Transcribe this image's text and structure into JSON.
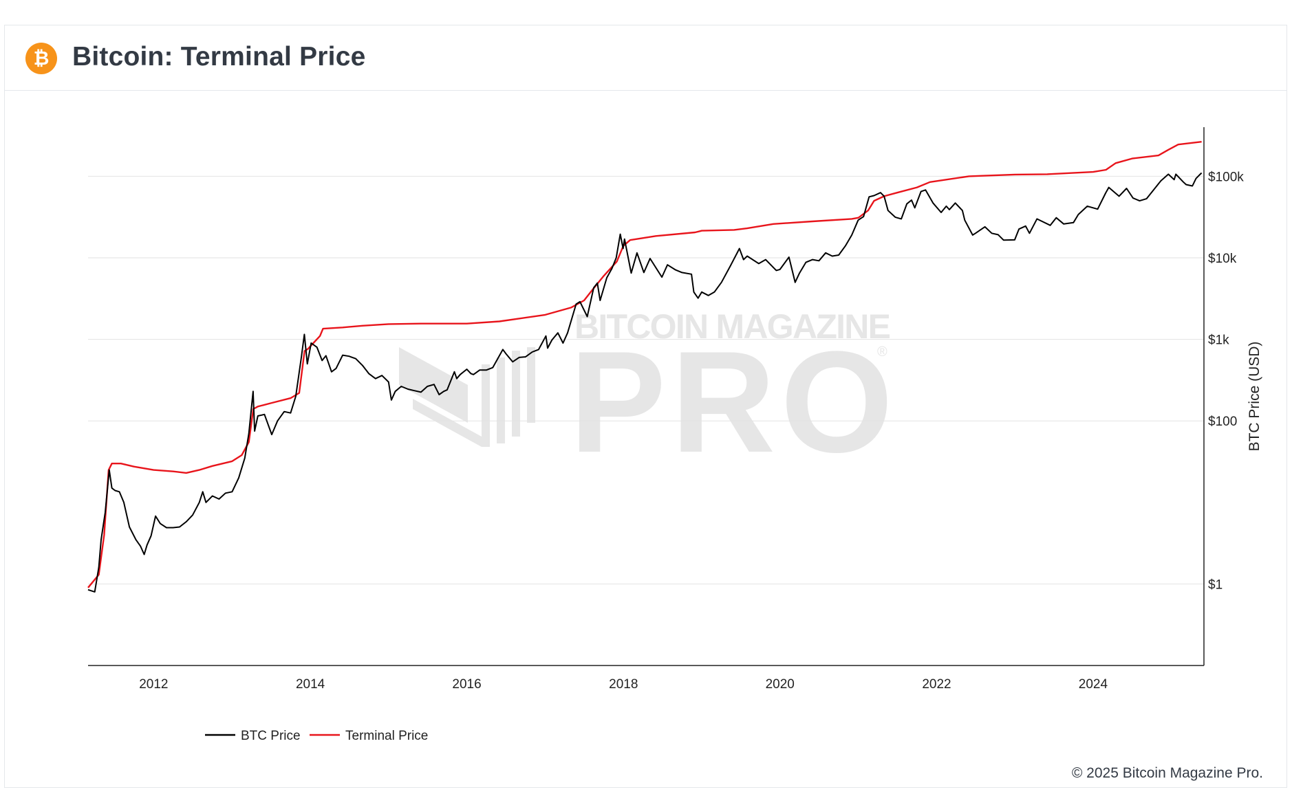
{
  "header": {
    "title": "Bitcoin: Terminal Price",
    "logo_icon": "bitcoin-logo-icon",
    "logo_glyph": "₿"
  },
  "watermark": {
    "line1": "BITCOIN MAGAZINE",
    "line2": "PRO",
    "mark": "®"
  },
  "footer": {
    "copyright": "© 2025 Bitcoin Magazine Pro."
  },
  "colors": {
    "btc": "#000000",
    "terminal": "#e8141b",
    "brand": "#f7931a",
    "grid": "#e2e2e2"
  },
  "chart_data": {
    "type": "line",
    "title": "Bitcoin: Terminal Price",
    "xlabel": "",
    "ylabel": "BTC Price (USD)",
    "y_scale": "log",
    "ylim": [
      0.1,
      400000
    ],
    "xlim": [
      "2011-03-01",
      "2025-06-01"
    ],
    "grid": true,
    "legend_position": "bottom-left",
    "x_ticks": [
      "2012",
      "2014",
      "2016",
      "2018",
      "2020",
      "2022",
      "2024"
    ],
    "y_ticks": [
      {
        "value": 1,
        "label": "$1"
      },
      {
        "value": 100,
        "label": "$100"
      },
      {
        "value": 1000,
        "label": "$1k"
      },
      {
        "value": 10000,
        "label": "$10k"
      },
      {
        "value": 100000,
        "label": "$100k"
      }
    ],
    "series": [
      {
        "name": "BTC Price",
        "color": "#000000",
        "points": [
          [
            "2011-03-01",
            0.85
          ],
          [
            "2011-04-01",
            0.8
          ],
          [
            "2011-04-20",
            1.6
          ],
          [
            "2011-05-01",
            3.5
          ],
          [
            "2011-05-20",
            7.5
          ],
          [
            "2011-06-08",
            25
          ],
          [
            "2011-06-20",
            15
          ],
          [
            "2011-07-05",
            14
          ],
          [
            "2011-07-25",
            13.5
          ],
          [
            "2011-08-15",
            10
          ],
          [
            "2011-09-10",
            5
          ],
          [
            "2011-10-10",
            3.5
          ],
          [
            "2011-11-01",
            2.9
          ],
          [
            "2011-11-18",
            2.3
          ],
          [
            "2011-12-01",
            3
          ],
          [
            "2011-12-20",
            3.9
          ],
          [
            "2012-01-10",
            6.8
          ],
          [
            "2012-02-01",
            5.5
          ],
          [
            "2012-03-01",
            4.9
          ],
          [
            "2012-04-01",
            4.9
          ],
          [
            "2012-05-01",
            5
          ],
          [
            "2012-06-01",
            5.8
          ],
          [
            "2012-07-01",
            7
          ],
          [
            "2012-08-01",
            10
          ],
          [
            "2012-08-17",
            13.5
          ],
          [
            "2012-09-01",
            10
          ],
          [
            "2012-10-01",
            12
          ],
          [
            "2012-11-01",
            11
          ],
          [
            "2012-12-01",
            13
          ],
          [
            "2013-01-01",
            13.5
          ],
          [
            "2013-02-01",
            20
          ],
          [
            "2013-03-01",
            35
          ],
          [
            "2013-03-20",
            70
          ],
          [
            "2013-04-09",
            230
          ],
          [
            "2013-04-16",
            75
          ],
          [
            "2013-05-01",
            115
          ],
          [
            "2013-06-01",
            120
          ],
          [
            "2013-07-05",
            68
          ],
          [
            "2013-08-01",
            100
          ],
          [
            "2013-09-01",
            130
          ],
          [
            "2013-10-01",
            125
          ],
          [
            "2013-10-25",
            200
          ],
          [
            "2013-11-20",
            600
          ],
          [
            "2013-12-04",
            1150
          ],
          [
            "2013-12-18",
            500
          ],
          [
            "2014-01-05",
            900
          ],
          [
            "2014-02-01",
            800
          ],
          [
            "2014-02-25",
            550
          ],
          [
            "2014-03-15",
            630
          ],
          [
            "2014-04-10",
            400
          ],
          [
            "2014-05-01",
            440
          ],
          [
            "2014-06-01",
            640
          ],
          [
            "2014-07-01",
            620
          ],
          [
            "2014-08-01",
            580
          ],
          [
            "2014-09-01",
            480
          ],
          [
            "2014-10-01",
            380
          ],
          [
            "2014-11-01",
            330
          ],
          [
            "2014-12-01",
            360
          ],
          [
            "2015-01-01",
            300
          ],
          [
            "2015-01-14",
            180
          ],
          [
            "2015-02-01",
            230
          ],
          [
            "2015-03-01",
            265
          ],
          [
            "2015-04-01",
            245
          ],
          [
            "2015-05-01",
            235
          ],
          [
            "2015-06-01",
            225
          ],
          [
            "2015-07-01",
            265
          ],
          [
            "2015-08-01",
            280
          ],
          [
            "2015-08-25",
            210
          ],
          [
            "2015-09-15",
            230
          ],
          [
            "2015-10-01",
            240
          ],
          [
            "2015-11-04",
            400
          ],
          [
            "2015-11-15",
            330
          ],
          [
            "2015-12-01",
            370
          ],
          [
            "2016-01-01",
            430
          ],
          [
            "2016-01-20",
            380
          ],
          [
            "2016-02-01",
            370
          ],
          [
            "2016-03-01",
            420
          ],
          [
            "2016-04-01",
            420
          ],
          [
            "2016-05-01",
            450
          ],
          [
            "2016-06-17",
            750
          ],
          [
            "2016-07-01",
            670
          ],
          [
            "2016-08-02",
            530
          ],
          [
            "2016-09-01",
            600
          ],
          [
            "2016-10-01",
            610
          ],
          [
            "2016-11-01",
            700
          ],
          [
            "2016-12-01",
            750
          ],
          [
            "2017-01-04",
            1100
          ],
          [
            "2017-01-12",
            780
          ],
          [
            "2017-02-01",
            980
          ],
          [
            "2017-03-01",
            1200
          ],
          [
            "2017-03-25",
            900
          ],
          [
            "2017-04-15",
            1200
          ],
          [
            "2017-05-25",
            2700
          ],
          [
            "2017-06-12",
            2900
          ],
          [
            "2017-07-16",
            1900
          ],
          [
            "2017-08-15",
            4300
          ],
          [
            "2017-09-01",
            4900
          ],
          [
            "2017-09-14",
            3000
          ],
          [
            "2017-10-15",
            5700
          ],
          [
            "2017-11-08",
            7400
          ],
          [
            "2017-11-28",
            10000
          ],
          [
            "2017-12-17",
            19500
          ],
          [
            "2017-12-30",
            13000
          ],
          [
            "2018-01-06",
            17000
          ],
          [
            "2018-02-06",
            6500
          ],
          [
            "2018-03-05",
            11500
          ],
          [
            "2018-04-06",
            6600
          ],
          [
            "2018-05-05",
            9800
          ],
          [
            "2018-06-29",
            5800
          ],
          [
            "2018-07-25",
            8200
          ],
          [
            "2018-09-01",
            7100
          ],
          [
            "2018-10-01",
            6600
          ],
          [
            "2018-11-14",
            6300
          ],
          [
            "2018-11-25",
            3800
          ],
          [
            "2018-12-15",
            3200
          ],
          [
            "2019-01-01",
            3800
          ],
          [
            "2019-02-01",
            3450
          ],
          [
            "2019-03-01",
            3800
          ],
          [
            "2019-04-03",
            5000
          ],
          [
            "2019-05-15",
            8000
          ],
          [
            "2019-06-26",
            13000
          ],
          [
            "2019-07-15",
            9500
          ],
          [
            "2019-08-01",
            10500
          ],
          [
            "2019-09-24",
            8500
          ],
          [
            "2019-10-26",
            9500
          ],
          [
            "2019-12-15",
            7000
          ],
          [
            "2020-01-01",
            7200
          ],
          [
            "2020-02-12",
            10200
          ],
          [
            "2020-03-12",
            5000
          ],
          [
            "2020-04-01",
            6500
          ],
          [
            "2020-05-01",
            8800
          ],
          [
            "2020-06-01",
            9500
          ],
          [
            "2020-07-01",
            9200
          ],
          [
            "2020-08-01",
            11500
          ],
          [
            "2020-09-01",
            10500
          ],
          [
            "2020-10-01",
            10800
          ],
          [
            "2020-11-01",
            14000
          ],
          [
            "2020-12-01",
            19000
          ],
          [
            "2020-12-31",
            29000
          ],
          [
            "2021-01-25",
            32000
          ],
          [
            "2021-02-20",
            56000
          ],
          [
            "2021-03-15",
            58000
          ],
          [
            "2021-04-14",
            63000
          ],
          [
            "2021-05-01",
            57000
          ],
          [
            "2021-05-19",
            38000
          ],
          [
            "2021-06-22",
            31500
          ],
          [
            "2021-07-20",
            30000
          ],
          [
            "2021-08-15",
            46000
          ],
          [
            "2021-09-06",
            51000
          ],
          [
            "2021-09-21",
            41000
          ],
          [
            "2021-10-20",
            65000
          ],
          [
            "2021-11-10",
            68000
          ],
          [
            "2021-12-15",
            47000
          ],
          [
            "2022-01-22",
            36000
          ],
          [
            "2022-02-15",
            43000
          ],
          [
            "2022-03-01",
            39000
          ],
          [
            "2022-03-29",
            47000
          ],
          [
            "2022-05-01",
            38000
          ],
          [
            "2022-05-12",
            29000
          ],
          [
            "2022-06-18",
            19000
          ],
          [
            "2022-07-01",
            20000
          ],
          [
            "2022-08-14",
            24000
          ],
          [
            "2022-09-15",
            20000
          ],
          [
            "2022-10-15",
            19200
          ],
          [
            "2022-11-09",
            16500
          ],
          [
            "2022-12-31",
            16600
          ],
          [
            "2023-01-20",
            22500
          ],
          [
            "2023-02-20",
            24500
          ],
          [
            "2023-03-10",
            20000
          ],
          [
            "2023-04-14",
            30000
          ],
          [
            "2023-06-15",
            25000
          ],
          [
            "2023-07-13",
            31000
          ],
          [
            "2023-08-17",
            26000
          ],
          [
            "2023-10-01",
            27000
          ],
          [
            "2023-10-24",
            34000
          ],
          [
            "2023-12-05",
            43000
          ],
          [
            "2024-01-22",
            39500
          ],
          [
            "2024-02-28",
            62000
          ],
          [
            "2024-03-14",
            73000
          ],
          [
            "2024-05-01",
            57000
          ],
          [
            "2024-06-05",
            71000
          ],
          [
            "2024-07-05",
            54000
          ],
          [
            "2024-08-05",
            50000
          ],
          [
            "2024-09-06",
            53000
          ],
          [
            "2024-10-01",
            64000
          ],
          [
            "2024-11-12",
            88000
          ],
          [
            "2024-12-17",
            106000
          ],
          [
            "2025-01-13",
            91000
          ],
          [
            "2025-01-21",
            106000
          ],
          [
            "2025-02-25",
            85000
          ],
          [
            "2025-03-10",
            79000
          ],
          [
            "2025-04-08",
            76000
          ],
          [
            "2025-04-25",
            94000
          ],
          [
            "2025-05-10",
            103000
          ],
          [
            "2025-05-21",
            110000
          ]
        ]
      },
      {
        "name": "Terminal Price",
        "color": "#e8141b",
        "points": [
          [
            "2011-03-01",
            0.9
          ],
          [
            "2011-04-20",
            1.3
          ],
          [
            "2011-05-15",
            4
          ],
          [
            "2011-06-05",
            25
          ],
          [
            "2011-06-20",
            30
          ],
          [
            "2011-08-01",
            30
          ],
          [
            "2011-10-01",
            27.5
          ],
          [
            "2012-01-01",
            25
          ],
          [
            "2012-04-01",
            24
          ],
          [
            "2012-06-01",
            23
          ],
          [
            "2012-08-01",
            25
          ],
          [
            "2012-10-01",
            28
          ],
          [
            "2013-01-01",
            32
          ],
          [
            "2013-02-15",
            38
          ],
          [
            "2013-03-20",
            55
          ],
          [
            "2013-04-10",
            140
          ],
          [
            "2013-05-01",
            150
          ],
          [
            "2013-07-01",
            165
          ],
          [
            "2013-10-01",
            190
          ],
          [
            "2013-11-10",
            220
          ],
          [
            "2013-12-05",
            720
          ],
          [
            "2013-12-20",
            760
          ],
          [
            "2014-01-15",
            900
          ],
          [
            "2014-02-15",
            1100
          ],
          [
            "2014-03-01",
            1350
          ],
          [
            "2014-06-01",
            1400
          ],
          [
            "2014-09-01",
            1470
          ],
          [
            "2015-01-01",
            1540
          ],
          [
            "2015-06-01",
            1560
          ],
          [
            "2016-01-01",
            1560
          ],
          [
            "2016-06-01",
            1660
          ],
          [
            "2017-01-01",
            2000
          ],
          [
            "2017-05-01",
            2450
          ],
          [
            "2017-07-01",
            3000
          ],
          [
            "2017-08-01",
            3800
          ],
          [
            "2017-10-01",
            6000
          ],
          [
            "2017-12-01",
            9000
          ],
          [
            "2017-12-31",
            14000
          ],
          [
            "2018-02-01",
            16500
          ],
          [
            "2018-06-01",
            18500
          ],
          [
            "2018-12-01",
            20500
          ],
          [
            "2019-01-01",
            21500
          ],
          [
            "2019-06-01",
            22000
          ],
          [
            "2019-08-01",
            23000
          ],
          [
            "2019-12-01",
            26000
          ],
          [
            "2020-06-01",
            28000
          ],
          [
            "2020-12-01",
            30000
          ],
          [
            "2021-01-01",
            31000
          ],
          [
            "2021-02-15",
            38000
          ],
          [
            "2021-03-15",
            50000
          ],
          [
            "2021-05-01",
            57000
          ],
          [
            "2021-07-01",
            63000
          ],
          [
            "2021-10-01",
            73000
          ],
          [
            "2021-12-01",
            85000
          ],
          [
            "2022-06-01",
            100000
          ],
          [
            "2023-01-01",
            105000
          ],
          [
            "2023-06-01",
            106000
          ],
          [
            "2024-01-01",
            113000
          ],
          [
            "2024-03-01",
            120000
          ],
          [
            "2024-04-15",
            145000
          ],
          [
            "2024-07-01",
            165000
          ],
          [
            "2024-11-01",
            180000
          ],
          [
            "2024-12-15",
            210000
          ],
          [
            "2025-02-01",
            245000
          ],
          [
            "2025-05-21",
            265000
          ]
        ]
      }
    ]
  }
}
